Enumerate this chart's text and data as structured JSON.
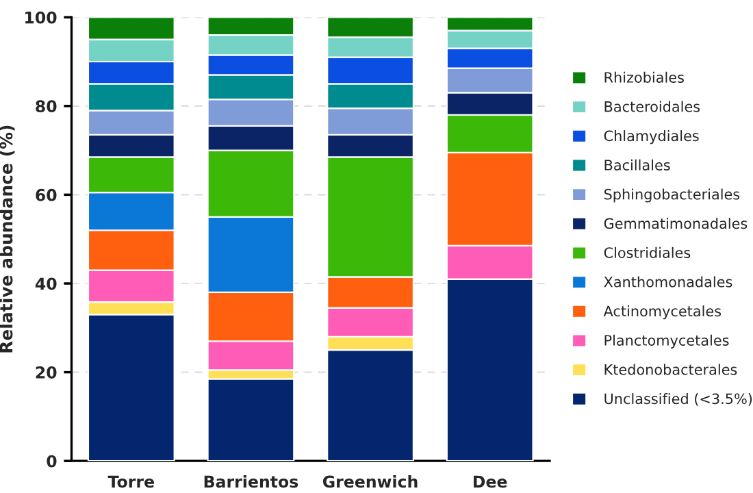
{
  "chart_data": {
    "type": "bar",
    "stacked": true,
    "ylabel": "Relative abundance (%)",
    "categories": [
      "Torre",
      "Barrientos",
      "Greenwich",
      "Dee"
    ],
    "ylim": [
      0,
      100
    ],
    "yticks": [
      0,
      20,
      40,
      60,
      80,
      100
    ],
    "grid": "y",
    "legend": "right",
    "series": [
      {
        "name": "Unclassified (<3.5%)",
        "color": "#03266e",
        "values": [
          33,
          18.5,
          25,
          41
        ]
      },
      {
        "name": "Ktedonobacterales",
        "color": "#ffdf55",
        "values": [
          2.8,
          2,
          3,
          0
        ]
      },
      {
        "name": "Planctomycetales",
        "color": "#ff5cb8",
        "values": [
          7.2,
          6.5,
          6.5,
          7.5
        ]
      },
      {
        "name": "Actinomycetales",
        "color": "#ff6010",
        "values": [
          9,
          11,
          7,
          21
        ]
      },
      {
        "name": "Xanthomonadales",
        "color": "#0b78d8",
        "values": [
          8.5,
          17,
          0,
          0
        ]
      },
      {
        "name": "Clostridiales",
        "color": "#3cb808",
        "values": [
          8,
          15,
          27,
          8.5
        ]
      },
      {
        "name": "Gemmatimonadales",
        "color": "#0a2466",
        "values": [
          5,
          5.5,
          5,
          5
        ]
      },
      {
        "name": "Sphingobacteriales",
        "color": "#7f9bd8",
        "values": [
          5.5,
          6,
          6,
          5.5
        ]
      },
      {
        "name": "Bacillales",
        "color": "#008b90",
        "values": [
          6,
          5.5,
          5.5,
          0
        ]
      },
      {
        "name": "Chlamydiales",
        "color": "#0a4fe2",
        "values": [
          5,
          4.5,
          6,
          4.5
        ]
      },
      {
        "name": "Bacteroidales",
        "color": "#74d3c4",
        "values": [
          5,
          4.5,
          4.5,
          4
        ]
      },
      {
        "name": "Rhizobiales",
        "color": "#0a800a",
        "values": [
          5,
          4,
          4.5,
          3
        ]
      }
    ]
  }
}
